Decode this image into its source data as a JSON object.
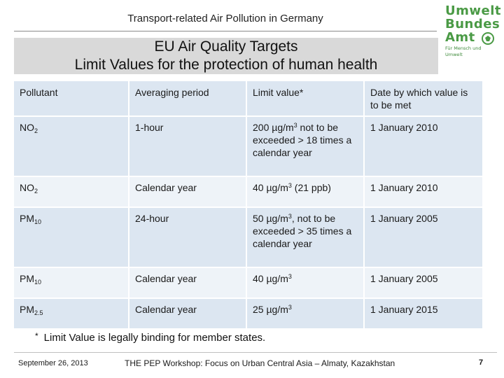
{
  "header": {
    "title": "Transport-related Air Pollution in Germany",
    "logo": {
      "line1": "Umwelt",
      "line2": "Bundes",
      "line3": "Amt",
      "tagline": "Für Mensch und Umwelt",
      "icon": "eagle-icon",
      "color": "#4a9a45"
    }
  },
  "banner": {
    "line1": "EU Air Quality Targets",
    "line2": "Limit Values for the protection of human health"
  },
  "table": {
    "columns": [
      "Pollutant",
      "Averaging period",
      "Limit value*",
      "Date by which value is to be met"
    ],
    "rows": [
      {
        "pollutant": "NO",
        "pollutant_sub": "2",
        "period": "1-hour",
        "limit_a": "200 µg/m",
        "limit_sup": "3",
        "limit_b": " not to be exceeded > 18 times a calendar year",
        "date": "1 January 2010"
      },
      {
        "pollutant": "NO",
        "pollutant_sub": "2",
        "period": "Calendar year",
        "limit_a": "40 µg/m",
        "limit_sup": "3",
        "limit_b": " (21 ppb)",
        "date": "1 January 2010"
      },
      {
        "pollutant": "PM",
        "pollutant_sub": "10",
        "period": "24-hour",
        "limit_a": "50 µg/m",
        "limit_sup": "3",
        "limit_b": ", not to be exceeded > 35 times a calendar year",
        "date": "1 January 2005"
      },
      {
        "pollutant": "PM",
        "pollutant_sub": "10",
        "period": "Calendar year",
        "limit_a": "40 µg/m",
        "limit_sup": "3",
        "limit_b": "",
        "date": "1 January 2005"
      },
      {
        "pollutant": "PM",
        "pollutant_sub": "2.5",
        "period": "Calendar year",
        "limit_a": "25 µg/m",
        "limit_sup": "3",
        "limit_b": "",
        "date": "1 January 2015"
      }
    ],
    "header_color": "#dce6f1",
    "row_color_light": "#eef3f8"
  },
  "footnote": {
    "star": "*",
    "text": "Limit Value is legally binding for member states."
  },
  "footer": {
    "date": "September 26, 2013",
    "event": "THE PEP Workshop: Focus on Urban Central Asia – Almaty, Kazakhstan",
    "page": "7"
  }
}
